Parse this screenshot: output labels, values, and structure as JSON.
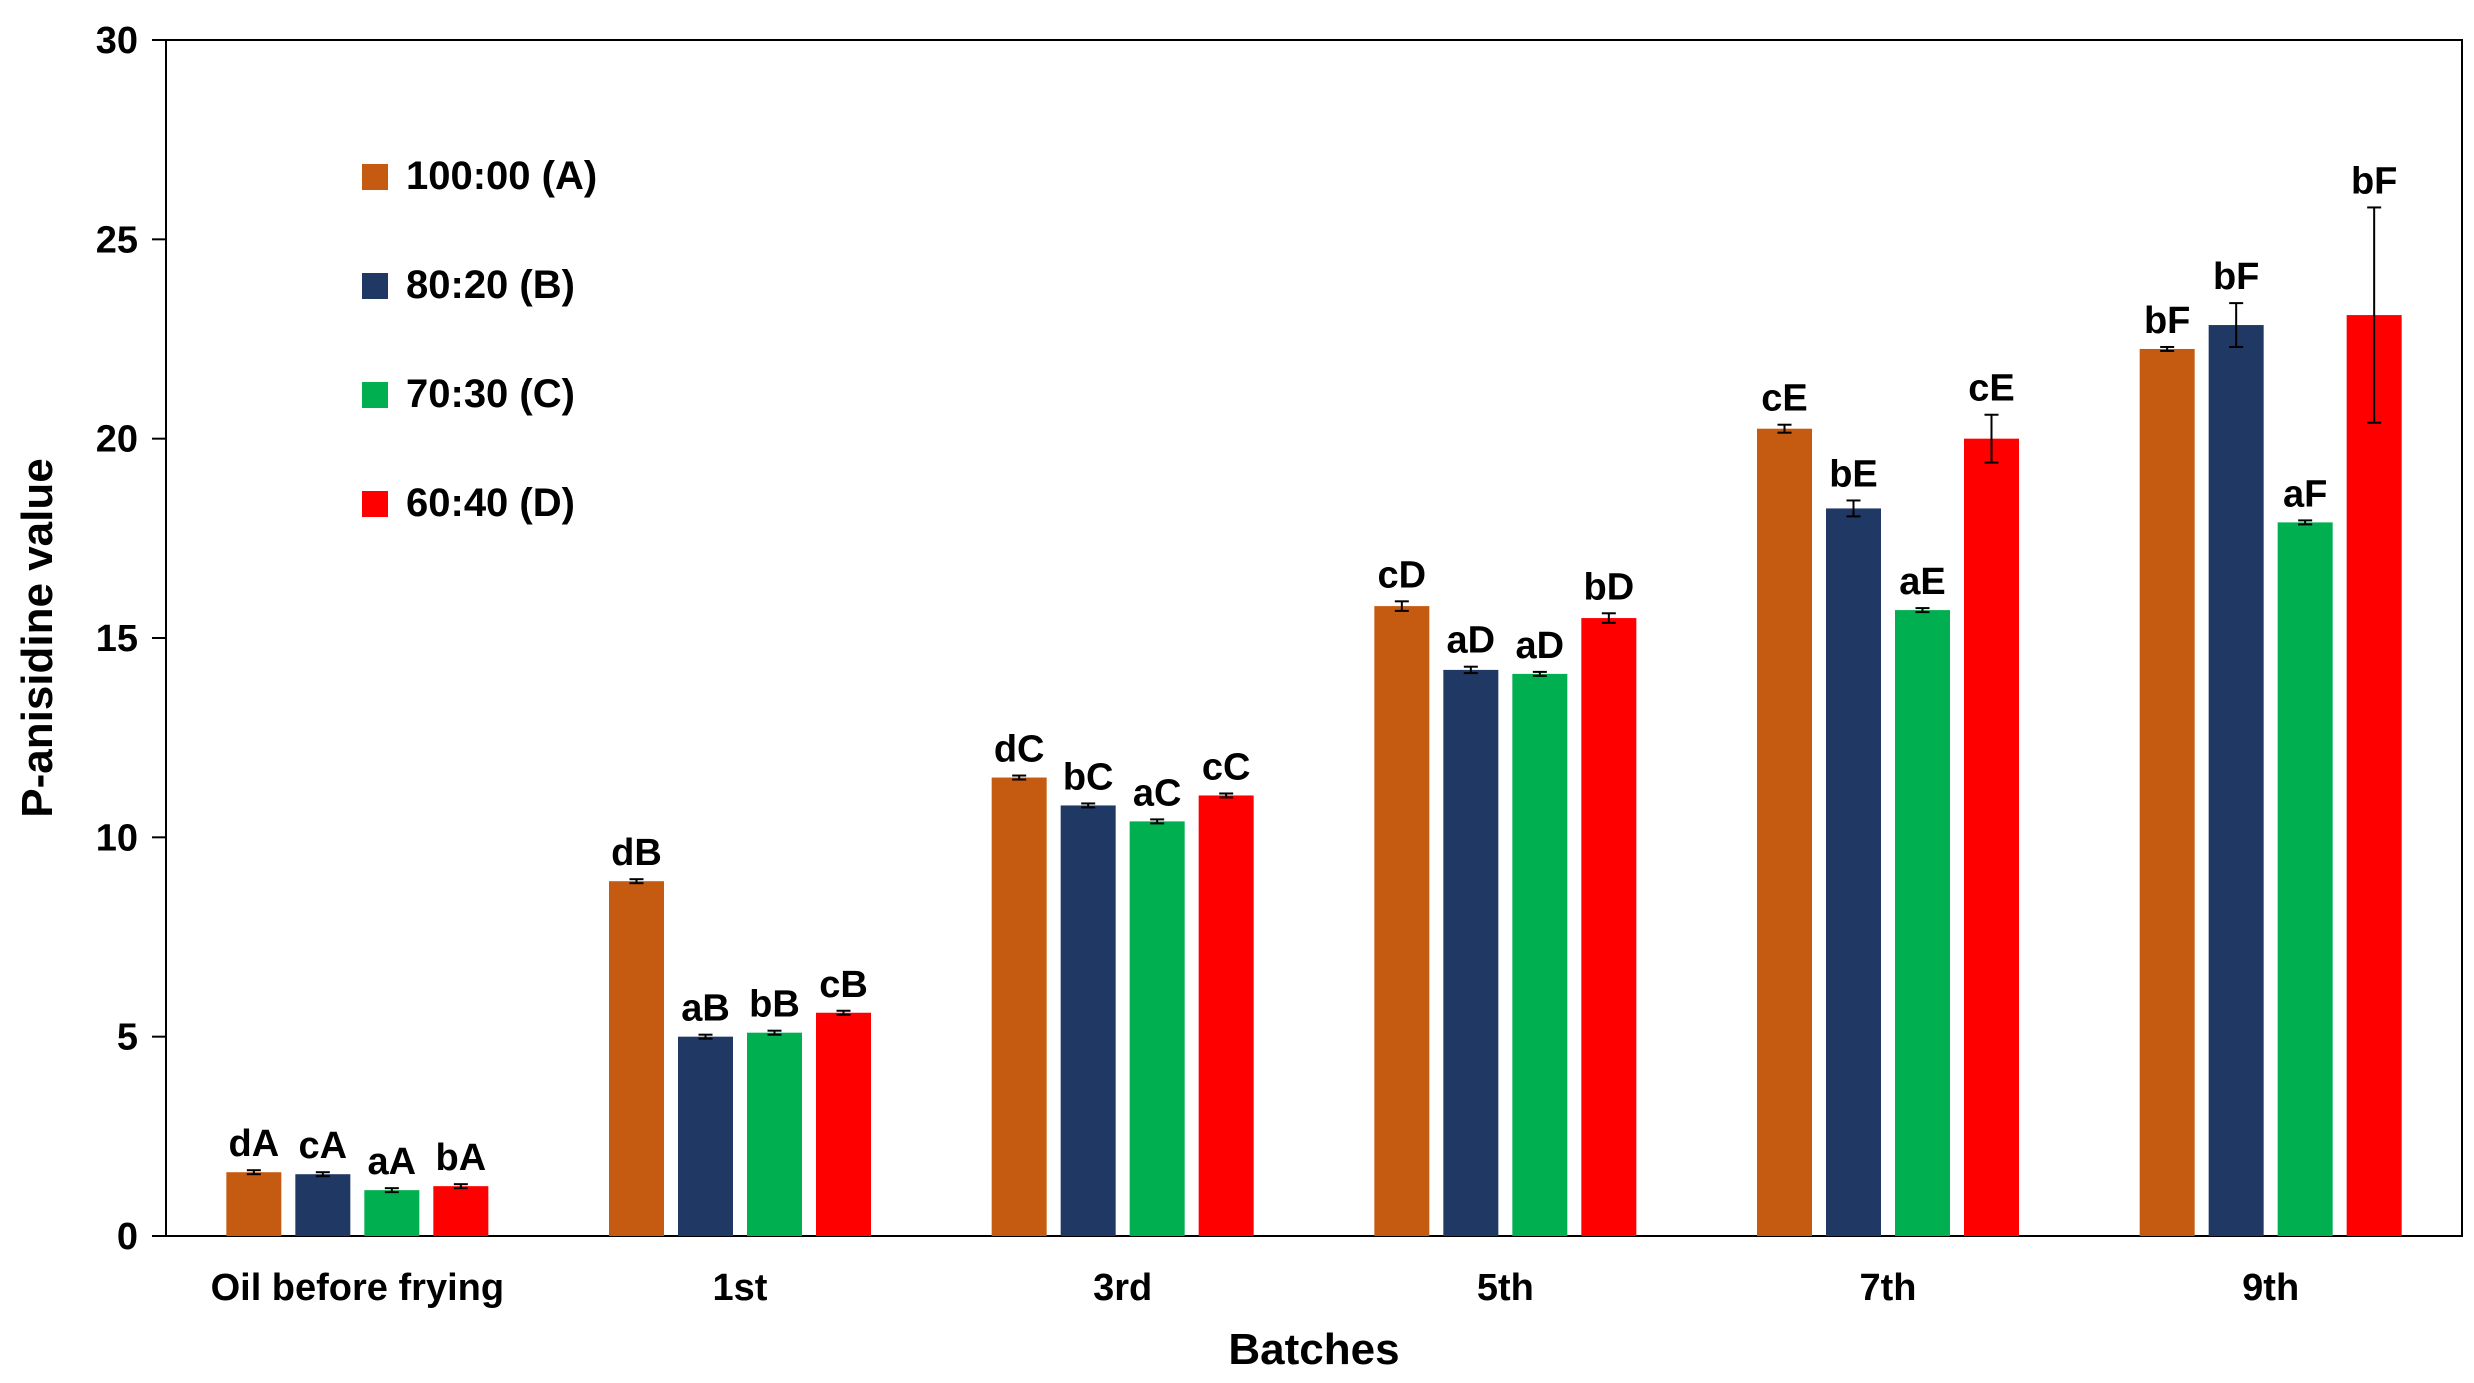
{
  "chart_data": {
    "type": "bar",
    "title": "",
    "xlabel": "Batches",
    "ylabel": "P-anisidine value",
    "ylim": [
      0,
      30
    ],
    "yticks": [
      0,
      5,
      10,
      15,
      20,
      25,
      30
    ],
    "grid": false,
    "legend_position": "top-left",
    "categories": [
      "Oil before frying",
      "1st",
      "3rd",
      "5th",
      "7th",
      "9th"
    ],
    "series": [
      {
        "name": "100:00 (A)",
        "color": "#C55A11",
        "values": [
          1.6,
          8.9,
          11.5,
          15.8,
          20.25,
          22.25
        ],
        "errors": [
          0.05,
          0.05,
          0.05,
          0.12,
          0.1,
          0.05
        ],
        "labels": [
          "dA",
          "dB",
          "dC",
          "cD",
          "cE",
          "bF"
        ]
      },
      {
        "name": "80:20 (B)",
        "color": "#203864",
        "values": [
          1.55,
          5.0,
          10.8,
          14.2,
          18.25,
          22.85
        ],
        "errors": [
          0.05,
          0.05,
          0.05,
          0.08,
          0.2,
          0.55
        ],
        "labels": [
          "cA",
          "aB",
          "bC",
          "aD",
          "bE",
          "bF"
        ]
      },
      {
        "name": "70:30 (C)",
        "color": "#00B050",
        "values": [
          1.15,
          5.1,
          10.4,
          14.1,
          15.7,
          17.9
        ],
        "errors": [
          0.05,
          0.05,
          0.05,
          0.05,
          0.05,
          0.05
        ],
        "labels": [
          "aA",
          "bB",
          "aC",
          "aD",
          "aE",
          "aF"
        ]
      },
      {
        "name": "60:40 (D)",
        "color": "#FF0000",
        "values": [
          1.25,
          5.6,
          11.05,
          15.5,
          20.0,
          23.1
        ],
        "errors": [
          0.05,
          0.05,
          0.05,
          0.12,
          0.6,
          2.7
        ],
        "labels": [
          "bA",
          "cB",
          "cC",
          "bD",
          "cE",
          "bF"
        ]
      }
    ]
  }
}
